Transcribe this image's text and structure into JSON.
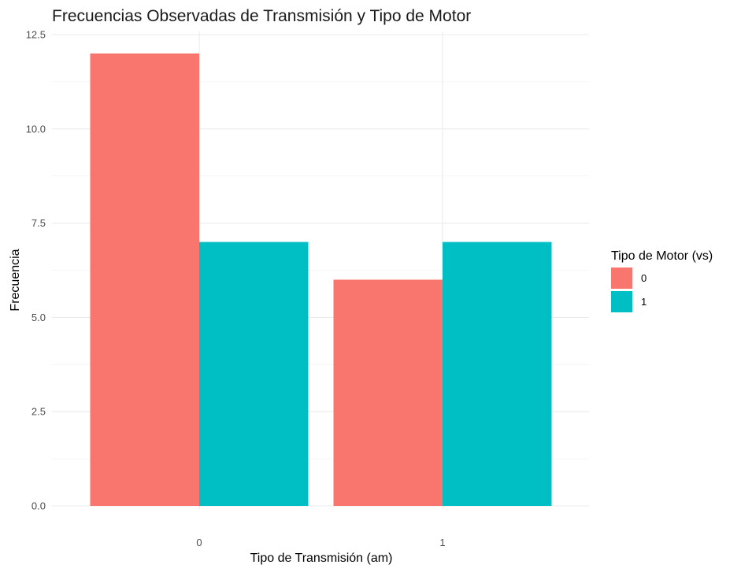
{
  "chart_data": {
    "type": "bar",
    "title": "Frecuencias Observadas de Transmisión y Tipo de Motor",
    "xlabel": "Tipo de Transmisión (am)",
    "ylabel": "Frecuencia",
    "categories": [
      "0",
      "1"
    ],
    "series": [
      {
        "name": "0",
        "values": [
          12,
          6
        ],
        "color": "#F8766D"
      },
      {
        "name": "1",
        "values": [
          7,
          7
        ],
        "color": "#00BFC4"
      }
    ],
    "ylim": [
      0,
      12.5
    ],
    "yticks": [
      "0.0",
      "2.5",
      "5.0",
      "7.5",
      "10.0",
      "12.5"
    ],
    "ytick_values": [
      0,
      2.5,
      5,
      7.5,
      10,
      12.5
    ],
    "grid": true,
    "legend": {
      "title": "Tipo de Motor (vs)",
      "position": "right"
    }
  }
}
